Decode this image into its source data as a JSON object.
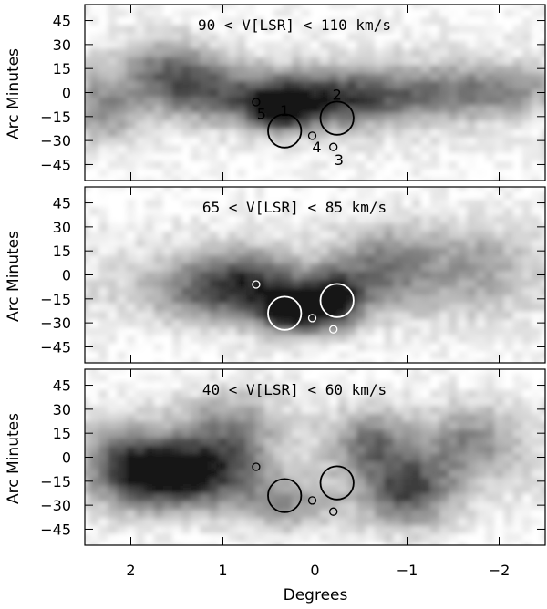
{
  "chart_data": {
    "type": "heatmap",
    "xlabel": "Degrees",
    "ylabel": "Arc Minutes",
    "xlim": [
      2.5,
      -2.5
    ],
    "ylim": [
      -55,
      55
    ],
    "xticks": [
      2,
      1,
      0,
      -1,
      -2
    ],
    "xtick_labels": [
      "2",
      "1",
      "0",
      "−1",
      "−2"
    ],
    "yticks": [
      45,
      30,
      15,
      0,
      -15,
      -30,
      -45
    ],
    "ytick_labels": [
      "45",
      "30",
      "15",
      "0",
      "−15",
      "−30",
      "−45"
    ],
    "colormap": "grayscale (higher intensity = darker)",
    "panels": [
      {
        "title": "90 < V[LSR] < 110 km/s",
        "marker_color": "#000000",
        "emission_peaks": [
          {
            "x": 1.6,
            "y": 15,
            "intensity": 0.45,
            "sx": 0.35,
            "sy": 14
          },
          {
            "x": 1.1,
            "y": 0,
            "intensity": 0.5,
            "sx": 0.45,
            "sy": 12
          },
          {
            "x": 0.4,
            "y": -10,
            "intensity": 0.85,
            "sx": 0.2,
            "sy": 8
          },
          {
            "x": 0.2,
            "y": -5,
            "intensity": 0.55,
            "sx": 0.4,
            "sy": 12
          },
          {
            "x": -0.4,
            "y": -3,
            "intensity": 0.5,
            "sx": 0.45,
            "sy": 12
          },
          {
            "x": -1.3,
            "y": 0,
            "intensity": 0.4,
            "sx": 0.5,
            "sy": 12
          },
          {
            "x": 2.3,
            "y": -10,
            "intensity": 0.4,
            "sx": 0.25,
            "sy": 14
          },
          {
            "x": -2.1,
            "y": 2,
            "intensity": 0.3,
            "sx": 0.4,
            "sy": 10
          }
        ]
      },
      {
        "title": "65 < V[LSR] < 85 km/s",
        "marker_color": "#ffffff",
        "emission_peaks": [
          {
            "x": 0.25,
            "y": -22,
            "intensity": 0.95,
            "sx": 0.25,
            "sy": 10
          },
          {
            "x": -0.2,
            "y": -15,
            "intensity": 0.95,
            "sx": 0.22,
            "sy": 12
          },
          {
            "x": 0.7,
            "y": -5,
            "intensity": 0.55,
            "sx": 0.4,
            "sy": 14
          },
          {
            "x": -0.75,
            "y": 5,
            "intensity": 0.45,
            "sx": 0.35,
            "sy": 18
          },
          {
            "x": 1.2,
            "y": -10,
            "intensity": 0.4,
            "sx": 0.5,
            "sy": 14
          },
          {
            "x": -1.7,
            "y": 5,
            "intensity": 0.3,
            "sx": 0.45,
            "sy": 20
          }
        ]
      },
      {
        "title": "40 < V[LSR] < 60 km/s",
        "marker_color": "#000000",
        "emission_peaks": [
          {
            "x": 1.6,
            "y": -10,
            "intensity": 0.95,
            "sx": 0.35,
            "sy": 14
          },
          {
            "x": 1.0,
            "y": -5,
            "intensity": 0.55,
            "sx": 0.35,
            "sy": 16
          },
          {
            "x": 2.1,
            "y": -5,
            "intensity": 0.5,
            "sx": 0.3,
            "sy": 18
          },
          {
            "x": -1.0,
            "y": -20,
            "intensity": 0.7,
            "sx": 0.35,
            "sy": 16
          },
          {
            "x": -0.6,
            "y": 10,
            "intensity": 0.45,
            "sx": 0.3,
            "sy": 14
          },
          {
            "x": -1.7,
            "y": 10,
            "intensity": 0.4,
            "sx": 0.35,
            "sy": 16
          },
          {
            "x": 0.3,
            "y": -30,
            "intensity": 0.35,
            "sx": 0.4,
            "sy": 12
          },
          {
            "x": 0.9,
            "y": 25,
            "intensity": 0.3,
            "sx": 0.4,
            "sy": 14
          }
        ]
      }
    ],
    "sources": [
      {
        "label": "1",
        "x": 0.33,
        "y": -24,
        "radius_deg": 0.18
      },
      {
        "label": "2",
        "x": -0.24,
        "y": -16,
        "radius_deg": 0.18
      },
      {
        "label": "3",
        "x": -0.2,
        "y": -34,
        "radius_deg": 0.04
      },
      {
        "label": "4",
        "x": 0.03,
        "y": -27,
        "radius_deg": 0.04
      },
      {
        "label": "5",
        "x": 0.64,
        "y": -6,
        "radius_deg": 0.04
      }
    ],
    "source_labels": [
      {
        "text": "1",
        "x": 0.33,
        "y": -11
      },
      {
        "text": "2",
        "x": -0.24,
        "y": -1
      },
      {
        "text": "3",
        "x": -0.26,
        "y": -42
      },
      {
        "text": "4",
        "x": -0.02,
        "y": -34
      },
      {
        "text": "5",
        "x": 0.58,
        "y": -13
      }
    ]
  }
}
